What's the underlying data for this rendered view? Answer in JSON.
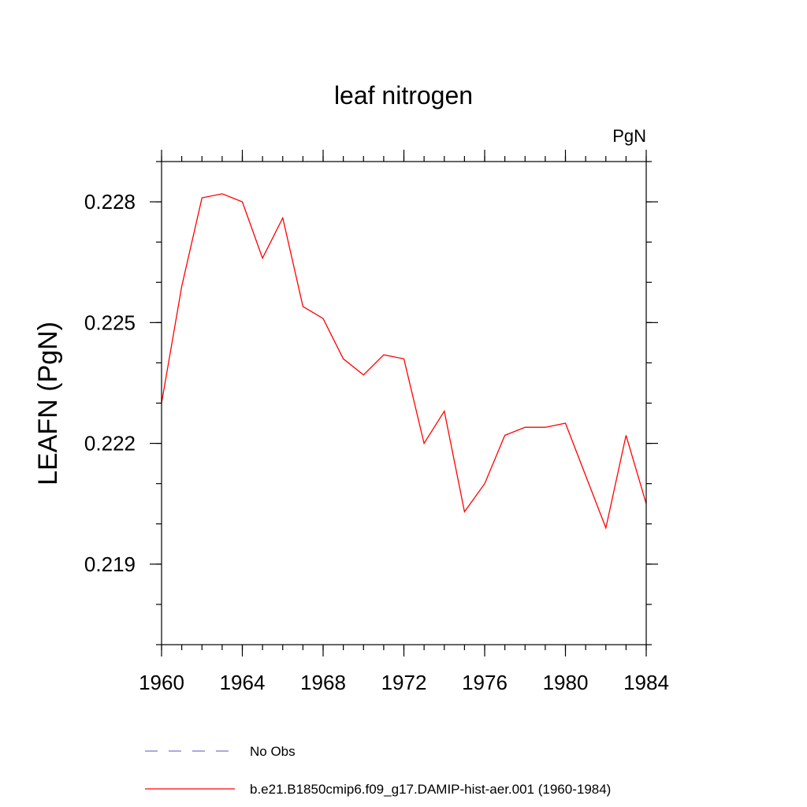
{
  "chart_data": {
    "type": "line",
    "title": "leaf nitrogen",
    "units": "PgN",
    "ylabel": "LEAFN  (PgN)",
    "xlim": [
      1960,
      1984
    ],
    "ylim": [
      0.217,
      0.229
    ],
    "x_ticks": [
      {
        "value": 1960,
        "label": "1960"
      },
      {
        "value": 1964,
        "label": "1964"
      },
      {
        "value": 1968,
        "label": "1968"
      },
      {
        "value": 1972,
        "label": "1972"
      },
      {
        "value": 1976,
        "label": "1976"
      },
      {
        "value": 1980,
        "label": "1980"
      },
      {
        "value": 1984,
        "label": "1984"
      }
    ],
    "x_minor_step": 1,
    "y_ticks": [
      {
        "value": 0.219,
        "label": "0.219"
      },
      {
        "value": 0.222,
        "label": "0.222"
      },
      {
        "value": 0.225,
        "label": "0.225"
      },
      {
        "value": 0.228,
        "label": "0.228"
      }
    ],
    "y_minor_step": 0.001,
    "grid": false,
    "legend_position": "bottom",
    "series": [
      {
        "name": "b.e21.B1850cmip6.f09_g17.DAMIP-hist-aer.001 (1960-1984)",
        "color": "#ff0000",
        "dash": "solid",
        "x": [
          1960,
          1961,
          1962,
          1963,
          1964,
          1965,
          1966,
          1967,
          1968,
          1969,
          1970,
          1971,
          1972,
          1973,
          1974,
          1975,
          1976,
          1977,
          1978,
          1979,
          1980,
          1981,
          1982,
          1983,
          1984
        ],
        "y": [
          0.223,
          0.2259,
          0.2281,
          0.2282,
          0.228,
          0.2266,
          0.2276,
          0.2254,
          0.2251,
          0.2241,
          0.2237,
          0.2242,
          0.2241,
          0.222,
          0.2228,
          0.2203,
          0.221,
          0.2222,
          0.2224,
          0.2224,
          0.2225,
          0.2212,
          0.2199,
          0.2222,
          0.2205
        ]
      }
    ],
    "legend": [
      {
        "label": "No Obs",
        "color": "#7777cc",
        "dash": "dashed"
      },
      {
        "label": "b.e21.B1850cmip6.f09_g17.DAMIP-hist-aer.001 (1960-1984)",
        "color": "#ff0000",
        "dash": "solid"
      }
    ]
  }
}
